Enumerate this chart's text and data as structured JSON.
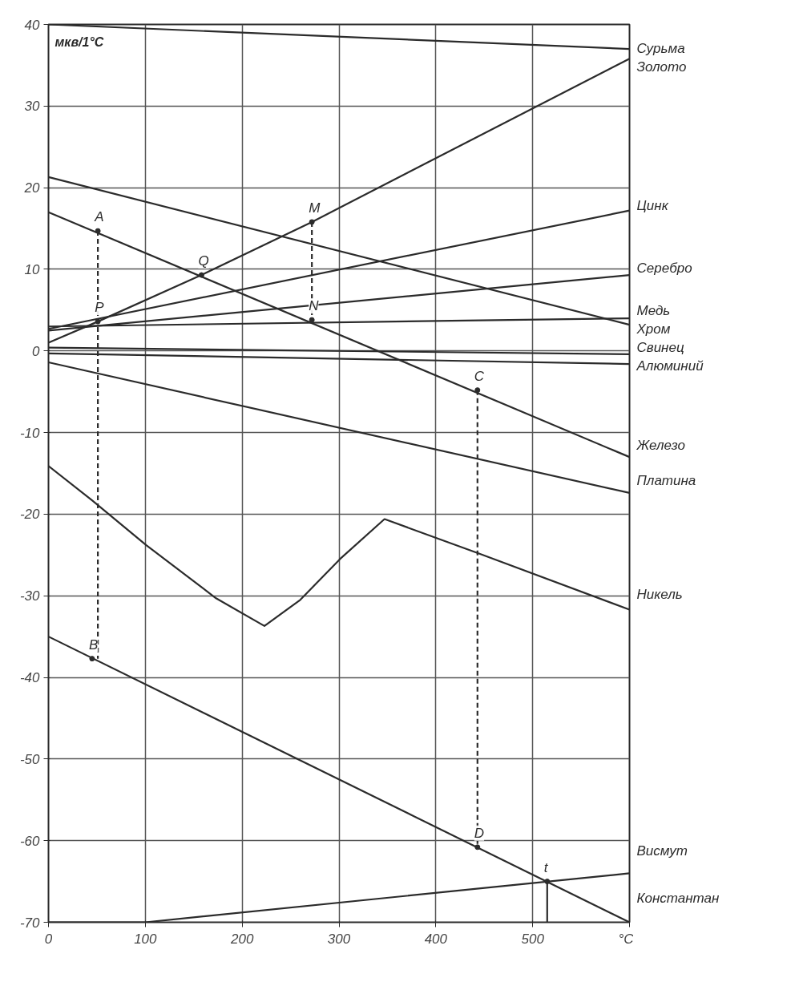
{
  "chart_data": {
    "type": "line",
    "ylabel": "мкв/1°C",
    "xlim": [
      0,
      600
    ],
    "ylim": [
      -70,
      40
    ],
    "xticks": [
      0,
      100,
      200,
      300,
      400,
      500,
      {
        "value": 600,
        "label": "°C"
      }
    ],
    "yticks": [
      -70,
      -60,
      -50,
      -40,
      -30,
      -20,
      -10,
      0,
      10,
      20,
      30,
      40
    ],
    "grid": true,
    "legend": "right",
    "marker": "none",
    "line_style": "solid",
    "series": [
      {
        "name": "Сурьма",
        "color": "#2b2b2b",
        "x": [
          0,
          600
        ],
        "values": [
          40,
          37
        ]
      },
      {
        "name": "Золото",
        "color": "#2b2b2b",
        "x": [
          0,
          51,
          158,
          272,
          600
        ],
        "values": [
          1,
          3.6,
          9.3,
          15.8,
          35.8
        ]
      },
      {
        "name": "Цинк",
        "color": "#2b2b2b",
        "x": [
          0,
          600
        ],
        "values": [
          2.7,
          17.2
        ]
      },
      {
        "name": "Серебро",
        "color": "#2b2b2b",
        "x": [
          0,
          600
        ],
        "values": [
          2.5,
          9.3
        ]
      },
      {
        "name": "Медь",
        "color": "#2b2b2b",
        "x": [
          0,
          600
        ],
        "values": [
          3,
          4
        ]
      },
      {
        "name": "Хром",
        "color": "#2b2b2b",
        "x": [
          0,
          600
        ],
        "values": [
          21.3,
          3.2
        ]
      },
      {
        "name": "Свинец",
        "color": "#2b2b2b",
        "x": [
          0,
          600
        ],
        "values": [
          0.4,
          -0.4
        ]
      },
      {
        "name": "Алюминий",
        "color": "#2b2b2b",
        "x": [
          0,
          600
        ],
        "values": [
          -0.3,
          -1.6
        ]
      },
      {
        "name": "Железо",
        "color": "#2b2b2b",
        "x": [
          0,
          600
        ],
        "values": [
          17,
          -13
        ]
      },
      {
        "name": "Платина",
        "color": "#2b2b2b",
        "x": [
          0,
          600
        ],
        "values": [
          -1.4,
          -17.4
        ]
      },
      {
        "name": "Никель",
        "color": "#2b2b2b",
        "x": [
          0,
          45,
          101,
          173,
          223,
          260,
          301,
          347,
          444,
          600
        ],
        "values": [
          -14.1,
          -18.3,
          -23.8,
          -30.3,
          -33.7,
          -30.5,
          -25.5,
          -20.6,
          -24.8,
          -31.7
        ]
      },
      {
        "name": "Висмут",
        "color": "#2b2b2b",
        "x": [
          0,
          100,
          600
        ],
        "values": [
          -70,
          -70,
          -64
        ]
      },
      {
        "name": "Константан",
        "color": "#2b2b2b",
        "x": [
          0,
          600
        ],
        "values": [
          -35,
          -70
        ]
      },
      {
        "color": "#2b2b2b",
        "line_style": "dashed",
        "x": [
          51,
          51
        ],
        "values": [
          14.7,
          -37.7
        ]
      },
      {
        "color": "#2b2b2b",
        "line_style": "dashed",
        "x": [
          272,
          272
        ],
        "values": [
          15.8,
          3.8
        ]
      },
      {
        "color": "#2b2b2b",
        "line_style": "dashed",
        "x": [
          443,
          443
        ],
        "values": [
          -4.8,
          -60.8
        ]
      },
      {
        "color": "#2b2b2b",
        "x": [
          515,
          515
        ],
        "values": [
          -65,
          -70
        ]
      }
    ],
    "annotations": [
      {
        "text": "A",
        "x": 51,
        "y": 14.7
      },
      {
        "text": "B",
        "x": 45,
        "y": -37.7
      },
      {
        "text": "P",
        "x": 51,
        "y": 3.6
      },
      {
        "text": "Q",
        "x": 158,
        "y": 9.3
      },
      {
        "text": "M",
        "x": 272,
        "y": 15.8
      },
      {
        "text": "N",
        "x": 272,
        "y": 3.8
      },
      {
        "text": "C",
        "x": 443,
        "y": -4.8
      },
      {
        "text": "D",
        "x": 443,
        "y": -60.8
      },
      {
        "text": "t",
        "x": 515,
        "y": -65
      }
    ]
  }
}
